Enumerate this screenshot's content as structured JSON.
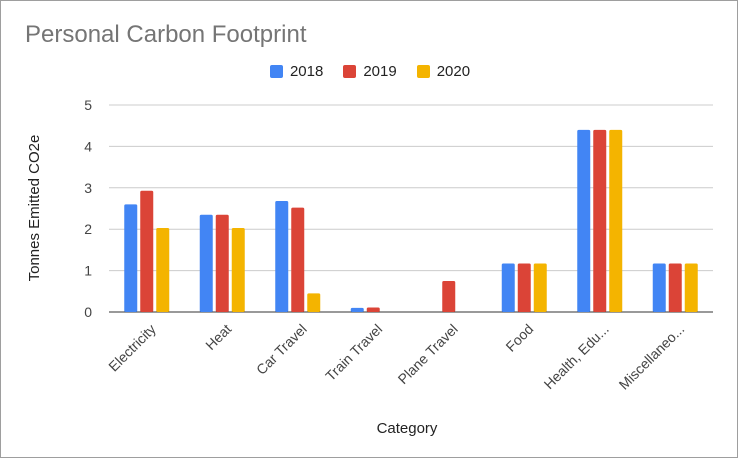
{
  "chart_data": {
    "type": "bar",
    "title": "Personal Carbon Footprint",
    "xlabel": "Category",
    "ylabel": "Tonnes Emitted CO2e",
    "ylim": [
      0,
      5
    ],
    "yticks": [
      "0",
      "1",
      "2",
      "3",
      "4",
      "5"
    ],
    "grid": true,
    "legend_position": "top-center",
    "categories": [
      "Electricity",
      "Heat",
      "Car Travel",
      "Train Travel",
      "Plane Travel",
      "Food",
      "Health, Edu...",
      "Miscellaneo..."
    ],
    "series": [
      {
        "name": "2018",
        "color": "#4285f4",
        "values": [
          2.6,
          2.35,
          2.68,
          0.1,
          0,
          1.17,
          4.4,
          1.17
        ]
      },
      {
        "name": "2019",
        "color": "#db4437",
        "values": [
          2.93,
          2.35,
          2.52,
          0.11,
          0.75,
          1.17,
          4.4,
          1.17
        ]
      },
      {
        "name": "2020",
        "color": "#f4b400",
        "values": [
          2.03,
          2.03,
          0.45,
          0,
          0,
          1.17,
          4.4,
          1.17
        ]
      }
    ]
  }
}
